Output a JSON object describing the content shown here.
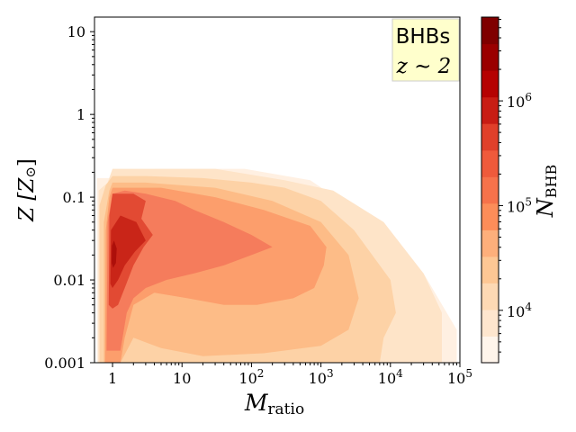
{
  "chart_data": {
    "type": "heatmap",
    "subtype": "filled-contour",
    "xlabel": "M",
    "xlabel_sub": "ratio",
    "ylabel": "Z [Z",
    "ylabel_sym": "⊙",
    "ylabel_end": "]",
    "x_scale": "log",
    "y_scale": "log",
    "xlim": [
      0.55,
      100000
    ],
    "ylim": [
      0.001,
      15
    ],
    "x_ticks": [
      {
        "value": 1,
        "label": "1"
      },
      {
        "value": 10,
        "label": "10"
      },
      {
        "value": 100,
        "base": "10",
        "exp": "2"
      },
      {
        "value": 1000,
        "base": "10",
        "exp": "3"
      },
      {
        "value": 10000,
        "base": "10",
        "exp": "4"
      },
      {
        "value": 100000,
        "base": "10",
        "exp": "5"
      }
    ],
    "y_ticks": [
      {
        "value": 0.001,
        "label": "0.001"
      },
      {
        "value": 0.01,
        "label": "0.01"
      },
      {
        "value": 0.1,
        "label": "0.1"
      },
      {
        "value": 1,
        "label": "1"
      },
      {
        "value": 10,
        "label": "10"
      }
    ],
    "annotation": {
      "line1": "BHBs",
      "line2": "z ∼ 2",
      "background": "#ffffcc"
    },
    "colorbar": {
      "label": "N",
      "label_sub": "BHB",
      "scale": "log",
      "ticks": [
        {
          "value": 10000,
          "base": "10",
          "exp": "4"
        },
        {
          "value": 100000,
          "base": "10",
          "exp": "5"
        },
        {
          "value": 1000000,
          "base": "10",
          "exp": "6"
        }
      ],
      "colors": [
        "#fff5eb",
        "#fee6ce",
        "#fdd9b4",
        "#fdc794",
        "#fdaf7b",
        "#fc8d59",
        "#f6724b",
        "#ef5a3b",
        "#e0402a",
        "#c81d14",
        "#b50202",
        "#9a0000",
        "#7f0000"
      ]
    },
    "levels": [
      {
        "color": "#fff0e2",
        "x": [
          0.6,
          0.6,
          2.2,
          4,
          80,
          700,
          4000,
          30000,
          90000,
          90000,
          8000,
          500
        ],
        "y": [
          0.001,
          0.17,
          0.17,
          0.22,
          0.22,
          0.16,
          0.06,
          0.012,
          0.0025,
          0.001,
          0.001,
          0.001
        ]
      },
      {
        "color": "#fee4c8",
        "x": [
          0.62,
          0.63,
          0.85,
          1,
          2,
          30,
          300,
          1500,
          8000,
          30000,
          55000,
          55000,
          5000,
          400
        ],
        "y": [
          0.001,
          0.12,
          0.15,
          0.22,
          0.22,
          0.22,
          0.16,
          0.12,
          0.05,
          0.012,
          0.004,
          0.001,
          0.001,
          0.001
        ]
      },
      {
        "color": "#fdd2a6",
        "x": [
          0.65,
          0.65,
          0.8,
          1,
          3,
          20,
          100,
          300,
          1000,
          3000,
          10000,
          12000,
          8000,
          7000,
          2000,
          500
        ],
        "y": [
          0.001,
          0.08,
          0.14,
          0.18,
          0.18,
          0.17,
          0.15,
          0.13,
          0.09,
          0.04,
          0.01,
          0.004,
          0.002,
          0.001,
          0.001,
          0.001
        ]
      },
      {
        "color": "#fdbc87",
        "x": [
          0.75,
          0.75,
          0.9,
          1,
          3,
          30,
          200,
          1000,
          2500,
          3500,
          2500,
          1000,
          150,
          20,
          5,
          2,
          1.3
        ],
        "y": [
          0.001,
          0.05,
          0.12,
          0.15,
          0.15,
          0.13,
          0.09,
          0.05,
          0.02,
          0.006,
          0.0025,
          0.0016,
          0.0013,
          0.0012,
          0.0015,
          0.002,
          0.001
        ]
      },
      {
        "color": "#fc9e6c",
        "x": [
          0.78,
          0.8,
          0.9,
          1,
          5,
          30,
          150,
          700,
          1200,
          1100,
          800,
          400,
          120,
          40,
          12,
          4,
          2,
          1.5,
          1.3
        ],
        "y": [
          0.001,
          0.04,
          0.1,
          0.13,
          0.13,
          0.1,
          0.07,
          0.045,
          0.025,
          0.015,
          0.008,
          0.006,
          0.005,
          0.005,
          0.006,
          0.007,
          0.005,
          0.002,
          0.001
        ]
      },
      {
        "color": "#f57c5c",
        "x": [
          0.82,
          0.85,
          1,
          1.5,
          3,
          8,
          15,
          40,
          100,
          200,
          100,
          40,
          15,
          6,
          3,
          2,
          1.6,
          1.3
        ],
        "y": [
          0.0014,
          0.05,
          0.11,
          0.12,
          0.11,
          0.09,
          0.07,
          0.05,
          0.035,
          0.025,
          0.02,
          0.015,
          0.012,
          0.01,
          0.008,
          0.006,
          0.004,
          0.0014
        ]
      },
      {
        "color": "#e24a33",
        "x": [
          0.88,
          0.9,
          1,
          2,
          3,
          2.6,
          3.8,
          2.8,
          2,
          1.5,
          1.2,
          1
        ],
        "y": [
          0.005,
          0.06,
          0.11,
          0.11,
          0.09,
          0.055,
          0.035,
          0.025,
          0.015,
          0.008,
          0.005,
          0.0045
        ]
      },
      {
        "color": "#c92518",
        "x": [
          0.93,
          0.95,
          1.3,
          2.2,
          3,
          2.1,
          1.5,
          1.2,
          1
        ],
        "y": [
          0.009,
          0.04,
          0.06,
          0.05,
          0.03,
          0.022,
          0.015,
          0.01,
          0.008
        ]
      },
      {
        "color": "#ad0f0a",
        "x": [
          0.97,
          0.98,
          1.05,
          1.15,
          1.12,
          1.02
        ],
        "y": [
          0.016,
          0.026,
          0.03,
          0.024,
          0.016,
          0.014
        ]
      }
    ]
  }
}
